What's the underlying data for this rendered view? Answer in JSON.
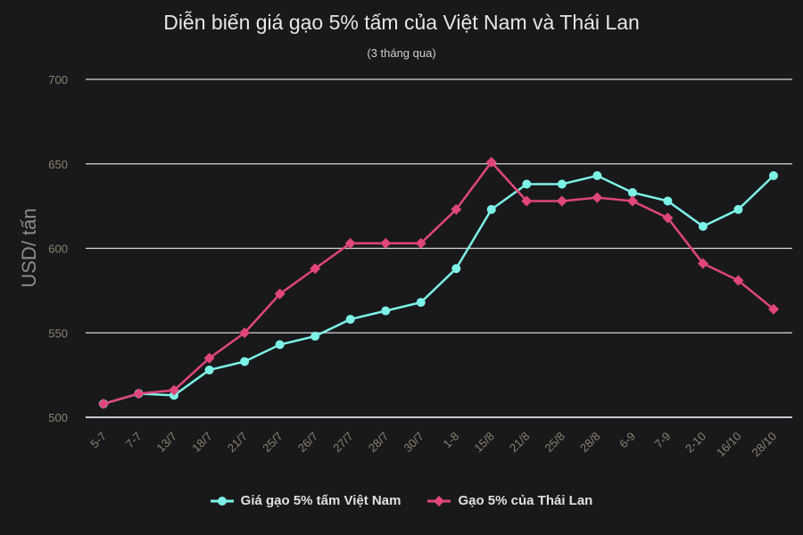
{
  "chart_data": {
    "type": "line",
    "title": "Diễn biến giá gạo 5% tấm của Việt Nam và Thái Lan",
    "subtitle": "(3 tháng qua)",
    "xlabel": "",
    "ylabel": "USD/ tấn",
    "ylim": [
      500,
      700
    ],
    "yticks": [
      500,
      550,
      600,
      650,
      700
    ],
    "grid": true,
    "legend_position": "bottom",
    "categories": [
      "5-7",
      "7-7",
      "13/7",
      "18/7",
      "21/7",
      "25/7",
      "26/7",
      "27/7",
      "28/7",
      "30/7",
      "1-8",
      "15/8",
      "21/8",
      "25/8",
      "28/8",
      "6-9",
      "7-9",
      "2-10",
      "16/10",
      "28/10"
    ],
    "series": [
      {
        "name": "Giá gạo 5% tấm Việt Nam",
        "color": "#7df3e8",
        "marker": "circle",
        "values": [
          508,
          514,
          513,
          528,
          533,
          543,
          548,
          558,
          563,
          568,
          588,
          623,
          638,
          638,
          643,
          633,
          628,
          613,
          623,
          643
        ]
      },
      {
        "name": "Gạo 5% của Thái Lan",
        "color": "#e0467c",
        "marker": "diamond",
        "values": [
          508,
          514,
          516,
          535,
          550,
          573,
          588,
          603,
          603,
          603,
          623,
          651,
          628,
          628,
          630,
          628,
          618,
          591,
          581,
          564
        ]
      }
    ]
  }
}
